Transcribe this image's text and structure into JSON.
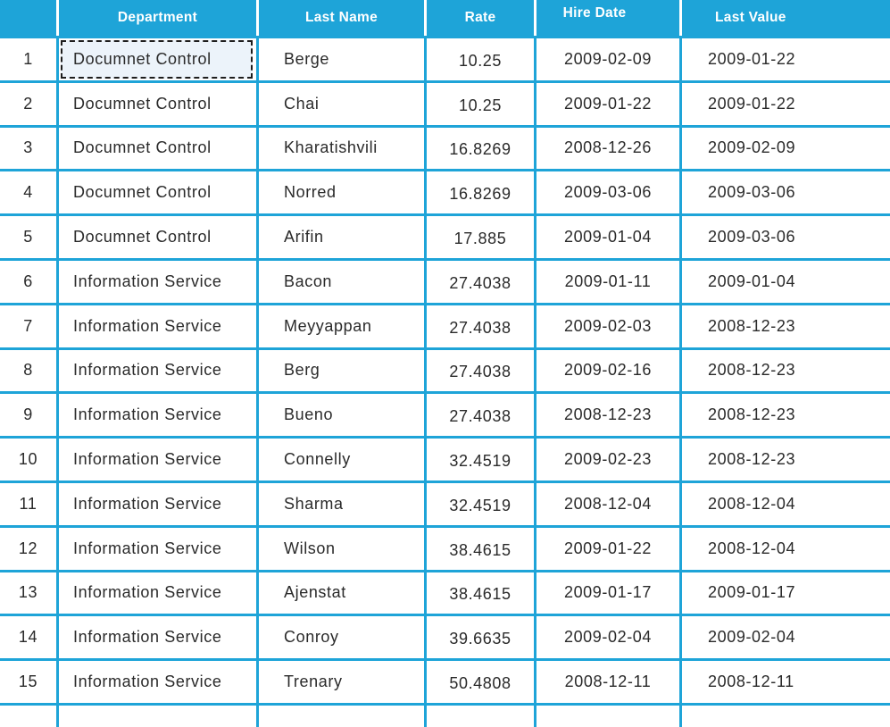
{
  "colors": {
    "accent_cyan": "#1EA4D8",
    "header_text": "#FFFFFF",
    "cell_text": "#2A2A2A",
    "selected_cell_fill": "#ECF3FA",
    "selection_border": "#1D1D1D",
    "cell_background": "#FFFFFF"
  },
  "table": {
    "columns": [
      "Department",
      "Last Name",
      "Rate",
      "Hire Date",
      "Last Value"
    ],
    "selection": {
      "row": 1,
      "column": "Department"
    },
    "rows": [
      {
        "num": "1",
        "department": "Documnet Control",
        "last_name": "Berge",
        "rate": "10.25",
        "hire_date": "2009-02-09",
        "last_value": "2009-01-22"
      },
      {
        "num": "2",
        "department": "Documnet Control",
        "last_name": "Chai",
        "rate": "10.25",
        "hire_date": "2009-01-22",
        "last_value": "2009-01-22"
      },
      {
        "num": "3",
        "department": "Documnet Control",
        "last_name": "Kharatishvili",
        "rate": "16.8269",
        "hire_date": "2008-12-26",
        "last_value": "2009-02-09"
      },
      {
        "num": "4",
        "department": "Documnet Control",
        "last_name": "Norred",
        "rate": "16.8269",
        "hire_date": "2009-03-06",
        "last_value": "2009-03-06"
      },
      {
        "num": "5",
        "department": "Documnet Control",
        "last_name": "Arifin",
        "rate": "17.885",
        "hire_date": "2009-01-04",
        "last_value": "2009-03-06"
      },
      {
        "num": "6",
        "department": "Information Service",
        "last_name": "Bacon",
        "rate": "27.4038",
        "hire_date": "2009-01-11",
        "last_value": "2009-01-04"
      },
      {
        "num": "7",
        "department": "Information Service",
        "last_name": "Meyyappan",
        "rate": "27.4038",
        "hire_date": "2009-02-03",
        "last_value": "2008-12-23"
      },
      {
        "num": "8",
        "department": "Information Service",
        "last_name": "Berg",
        "rate": "27.4038",
        "hire_date": "2009-02-16",
        "last_value": "2008-12-23"
      },
      {
        "num": "9",
        "department": "Information Service",
        "last_name": "Bueno",
        "rate": "27.4038",
        "hire_date": "2008-12-23",
        "last_value": "2008-12-23"
      },
      {
        "num": "10",
        "department": "Information Service",
        "last_name": "Connelly",
        "rate": "32.4519",
        "hire_date": "2009-02-23",
        "last_value": "2008-12-23"
      },
      {
        "num": "11",
        "department": "Information Service",
        "last_name": "Sharma",
        "rate": "32.4519",
        "hire_date": "2008-12-04",
        "last_value": "2008-12-04"
      },
      {
        "num": "12",
        "department": "Information Service",
        "last_name": "Wilson",
        "rate": "38.4615",
        "hire_date": "2009-01-22",
        "last_value": "2008-12-04"
      },
      {
        "num": "13",
        "department": "Information Service",
        "last_name": "Ajenstat",
        "rate": "38.4615",
        "hire_date": "2009-01-17",
        "last_value": "2009-01-17"
      },
      {
        "num": "14",
        "department": "Information Service",
        "last_name": "Conroy",
        "rate": "39.6635",
        "hire_date": "2009-02-04",
        "last_value": "2009-02-04"
      },
      {
        "num": "15",
        "department": "Information Service",
        "last_name": "Trenary",
        "rate": "50.4808",
        "hire_date": "2008-12-11",
        "last_value": "2008-12-11"
      }
    ]
  }
}
